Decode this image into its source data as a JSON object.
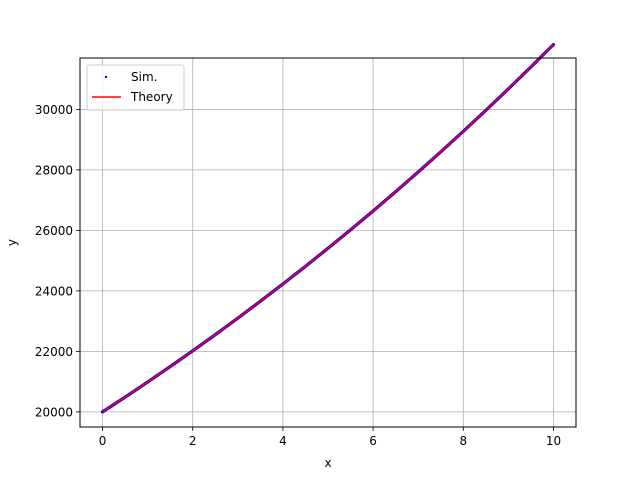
{
  "chart_data": {
    "type": "scatter",
    "title": "",
    "xlabel": "x",
    "ylabel": "y",
    "xlim": [
      -0.5,
      10.5
    ],
    "ylim": [
      19500,
      31700
    ],
    "xticks": [
      0,
      2,
      4,
      6,
      8,
      10
    ],
    "yticks": [
      20000,
      22000,
      24000,
      26000,
      28000,
      30000
    ],
    "xtick_labels": [
      "0",
      "2",
      "4",
      "6",
      "8",
      "10"
    ],
    "ytick_labels": [
      "20000",
      "22000",
      "24000",
      "26000",
      "28000",
      "30000"
    ],
    "grid": true,
    "legend_position": "upper-left",
    "series": [
      {
        "name": "Sim.",
        "kind": "scatter",
        "color": "#0000ff",
        "x": [
          0,
          0.5,
          1,
          1.5,
          2,
          2.5,
          3,
          3.5,
          4,
          4.5,
          5,
          5.5,
          6,
          6.5,
          7,
          7.5,
          8,
          8.5,
          9,
          9.5,
          10
        ],
        "y": [
          20000,
          20488,
          20987,
          21497,
          22019,
          22553,
          23099,
          23658,
          24229,
          24812,
          25409,
          26019,
          26642,
          27279,
          27930,
          28595,
          29275,
          29970,
          30679,
          31404,
          32144
        ]
      },
      {
        "name": "Theory",
        "kind": "line",
        "color": "#ff0000",
        "x": [
          0,
          0.5,
          1,
          1.5,
          2,
          2.5,
          3,
          3.5,
          4,
          4.5,
          5,
          5.5,
          6,
          6.5,
          7,
          7.5,
          8,
          8.5,
          9,
          9.5,
          10
        ],
        "y": [
          20000,
          20488,
          20987,
          21497,
          22019,
          22553,
          23099,
          23658,
          24229,
          24812,
          25409,
          26019,
          26642,
          27279,
          27930,
          28595,
          29275,
          29970,
          30679,
          31404,
          32144
        ]
      }
    ],
    "legend": [
      {
        "label": "Sim.",
        "marker": "dot",
        "color": "#0000ff"
      },
      {
        "label": "Theory",
        "marker": "line",
        "color": "#ff0000"
      }
    ],
    "colors": {
      "grid": "#b0b0b0",
      "axes": "#000000"
    }
  }
}
